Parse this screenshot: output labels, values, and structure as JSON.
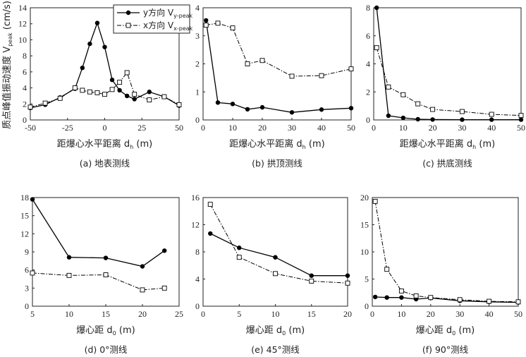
{
  "ylabel": "质点峰值振动速度 V",
  "ylabel_sub": "peak",
  "ylabel_unit": " (cm/s)",
  "legend": {
    "y": {
      "text": "y方向 V",
      "sub": "y-peak"
    },
    "x": {
      "text": "x方向 V",
      "sub": "x-peak"
    }
  },
  "colors": {
    "line": "#000000",
    "marker_fill_y": "#000000",
    "marker_fill_x": "#ffffff"
  },
  "chart_data": [
    {
      "id": "a",
      "type": "line",
      "caption": "(a)  地表测线",
      "xlabel": "距爆心水平距离 d",
      "xlabel_sub": "h",
      "xlabel_unit": "  (m)",
      "xlim": [
        -50,
        50
      ],
      "ylim": [
        0,
        14
      ],
      "xticks": [
        -50,
        -25,
        0,
        25,
        50
      ],
      "xtick_labels": [
        "-50",
        "-25",
        "0",
        "25",
        "50"
      ],
      "yticks": [
        0,
        2,
        4,
        6,
        8,
        10,
        12,
        14
      ],
      "ytick_labels": [
        "0",
        "2",
        "4",
        "6",
        "8",
        "10",
        "12",
        "14"
      ],
      "series": [
        {
          "name": "y方向 V y-peak",
          "style": "solid-filled",
          "x": [
            -50,
            -40,
            -30,
            -20,
            -15,
            -10,
            -5,
            0,
            5,
            10,
            15,
            20,
            30,
            40,
            50
          ],
          "y": [
            1.5,
            1.9,
            2.8,
            3.9,
            6.5,
            9.5,
            12.1,
            9.1,
            5.0,
            3.7,
            3.0,
            2.6,
            3.5,
            2.9,
            1.8
          ]
        },
        {
          "name": "x方向 V x-peak",
          "style": "dashdot-open",
          "x": [
            -50,
            -40,
            -30,
            -20,
            -15,
            -10,
            -5,
            0,
            5,
            10,
            15,
            20,
            30,
            40,
            50
          ],
          "y": [
            1.6,
            2.1,
            2.7,
            4.0,
            3.7,
            3.5,
            3.4,
            3.2,
            3.8,
            4.7,
            5.9,
            3.2,
            2.5,
            2.9,
            1.9
          ]
        }
      ]
    },
    {
      "id": "b",
      "type": "line",
      "caption": "(b)  拱顶测线",
      "xlabel": "距爆心水平距离 d",
      "xlabel_sub": "h",
      "xlabel_unit": "  (m)",
      "xlim": [
        0,
        50
      ],
      "ylim": [
        0,
        4
      ],
      "xticks": [
        0,
        10,
        20,
        30,
        40,
        50
      ],
      "xtick_labels": [
        "0",
        "10",
        "20",
        "30",
        "40",
        "50"
      ],
      "yticks": [
        0,
        1,
        2,
        3,
        4
      ],
      "ytick_labels": [
        "0",
        "1",
        "2",
        "3",
        "4"
      ],
      "series": [
        {
          "name": "y方向",
          "style": "solid-filled",
          "x": [
            1,
            5,
            10,
            15,
            20,
            30,
            40,
            50
          ],
          "y": [
            3.55,
            0.62,
            0.57,
            0.38,
            0.45,
            0.27,
            0.37,
            0.42
          ]
        },
        {
          "name": "x方向",
          "style": "dashdot-open",
          "x": [
            1,
            5,
            10,
            15,
            20,
            30,
            40,
            50
          ],
          "y": [
            3.38,
            3.45,
            3.28,
            2.0,
            2.12,
            1.56,
            1.58,
            1.82
          ]
        }
      ]
    },
    {
      "id": "c",
      "type": "line",
      "caption": "(c)  拱底测线",
      "xlabel": "距爆心水平距离 d",
      "xlabel_sub": "h",
      "xlabel_unit": "  (m)",
      "xlim": [
        0,
        50
      ],
      "ylim": [
        0,
        8
      ],
      "xticks": [
        0,
        10,
        20,
        30,
        40,
        50
      ],
      "xtick_labels": [
        "0",
        "10",
        "20",
        "30",
        "40",
        "50"
      ],
      "yticks": [
        0,
        2,
        4,
        6,
        8
      ],
      "ytick_labels": [
        "0",
        "2",
        "4",
        "6",
        "8"
      ],
      "series": [
        {
          "name": "y方向",
          "style": "solid-filled",
          "x": [
            1,
            5,
            10,
            15,
            20,
            30,
            40,
            50
          ],
          "y": [
            8.0,
            0.3,
            0.15,
            0.05,
            0.03,
            0.02,
            0.02,
            0.02
          ]
        },
        {
          "name": "x方向",
          "style": "dashdot-open",
          "x": [
            1,
            5,
            10,
            15,
            20,
            30,
            40,
            50
          ],
          "y": [
            5.15,
            2.35,
            1.8,
            1.15,
            0.75,
            0.6,
            0.4,
            0.32
          ]
        }
      ]
    },
    {
      "id": "d",
      "type": "line",
      "caption": "(d)  0°测线",
      "xlabel": "爆心距 d",
      "xlabel_sub": "0",
      "xlabel_unit": "  (m)",
      "xlim": [
        5,
        25
      ],
      "ylim": [
        0,
        18
      ],
      "xticks": [
        5,
        10,
        15,
        20,
        25
      ],
      "xtick_labels": [
        "5",
        "10",
        "15",
        "20",
        "25"
      ],
      "yticks": [
        0,
        3,
        6,
        9,
        12,
        15,
        18
      ],
      "ytick_labels": [
        "0",
        "3",
        "6",
        "9",
        "12",
        "15",
        "18"
      ],
      "series": [
        {
          "name": "y方向",
          "style": "solid-filled",
          "x": [
            5,
            10,
            15,
            20,
            23
          ],
          "y": [
            17.7,
            8.1,
            8.0,
            6.6,
            9.2
          ]
        },
        {
          "name": "x方向",
          "style": "dashdot-open",
          "x": [
            5,
            10,
            15,
            20,
            23
          ],
          "y": [
            5.5,
            5.1,
            5.2,
            2.7,
            3.0
          ]
        }
      ]
    },
    {
      "id": "e",
      "type": "line",
      "caption": "(e)  45°测线",
      "xlabel": "爆心距 d",
      "xlabel_sub": "0",
      "xlabel_unit": "  (m)",
      "xlim": [
        0,
        20
      ],
      "ylim": [
        0,
        16
      ],
      "xticks": [
        0,
        5,
        10,
        15,
        20
      ],
      "xtick_labels": [
        "0",
        "5",
        "10",
        "15",
        "20"
      ],
      "yticks": [
        0,
        4,
        8,
        12,
        16
      ],
      "ytick_labels": [
        "0",
        "4",
        "8",
        "12",
        "16"
      ],
      "series": [
        {
          "name": "y方向",
          "style": "solid-filled",
          "x": [
            1,
            5,
            10,
            15,
            20
          ],
          "y": [
            10.7,
            8.6,
            7.2,
            4.5,
            4.5
          ]
        },
        {
          "name": "x方向",
          "style": "dashdot-open",
          "x": [
            1,
            5,
            10,
            15,
            20
          ],
          "y": [
            15.0,
            7.2,
            4.8,
            3.7,
            3.4
          ]
        }
      ]
    },
    {
      "id": "f",
      "type": "line",
      "caption": "(f)  90°测线",
      "xlabel": "爆心距 d",
      "xlabel_sub": "0",
      "xlabel_unit": "  (m)",
      "xlim": [
        0,
        50
      ],
      "ylim": [
        0,
        20
      ],
      "xticks": [
        0,
        10,
        20,
        30,
        40,
        50
      ],
      "xtick_labels": [
        "0",
        "10",
        "20",
        "30",
        "40",
        "50"
      ],
      "yticks": [
        0,
        5,
        10,
        15,
        20
      ],
      "ytick_labels": [
        "0",
        "5",
        "10",
        "15",
        "20"
      ],
      "series": [
        {
          "name": "y方向",
          "style": "solid-filled",
          "x": [
            1,
            5,
            10,
            15,
            20,
            30,
            40,
            50
          ],
          "y": [
            1.7,
            1.6,
            1.6,
            1.3,
            1.5,
            1.0,
            0.8,
            0.7
          ]
        },
        {
          "name": "x方向",
          "style": "dashdot-open",
          "x": [
            1,
            5,
            10,
            15,
            20,
            30,
            40,
            50
          ],
          "y": [
            19.3,
            6.8,
            2.8,
            1.9,
            1.6,
            1.2,
            0.9,
            0.8
          ]
        }
      ]
    }
  ]
}
